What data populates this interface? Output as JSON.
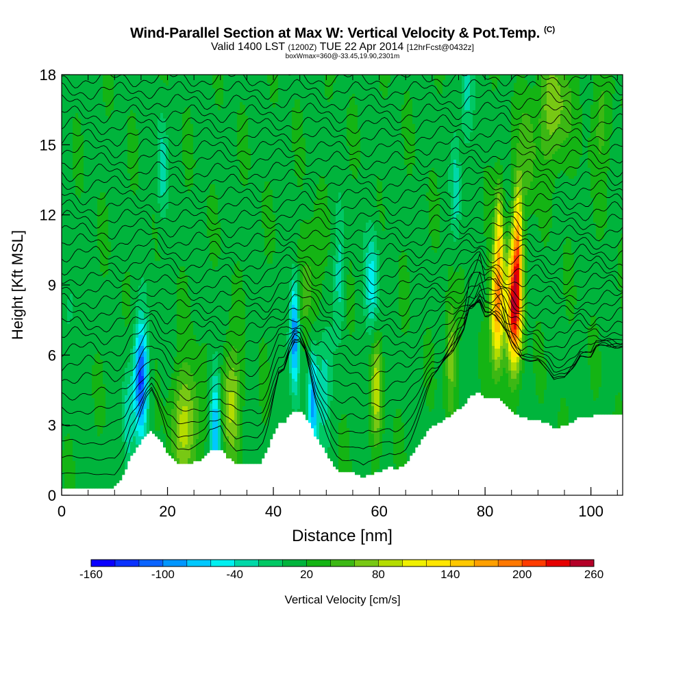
{
  "chart_data": {
    "type": "contour",
    "title": "Wind-Parallel Section at Max W: Vertical Velocity & Pot.Temp.",
    "title_mark": "(C)",
    "subtitle_main": "Valid 1400 LST",
    "subtitle_utc": "(1200Z)",
    "subtitle_date": "TUE 22 Apr 2014",
    "subtitle_fcst": "[12hrFcst@0432z]",
    "subtitle_box": "boxWmax=360@-33.45,19.90,2301m",
    "xlabel": "Distance [nm]",
    "ylabel": "Height [Kft MSL]",
    "xlim": [
      0,
      106
    ],
    "ylim": [
      0,
      18
    ],
    "xticks": [
      0,
      20,
      40,
      60,
      80,
      100
    ],
    "yticks": [
      0,
      3,
      6,
      9,
      12,
      15,
      18
    ],
    "colorbar": {
      "label": "Vertical Velocity [cm/s]",
      "tick_labels": [
        "-160",
        "-100",
        "-40",
        "20",
        "80",
        "140",
        "200",
        "260"
      ],
      "tick_values": [
        -160,
        -100,
        -40,
        20,
        80,
        140,
        200,
        260
      ],
      "min": -160,
      "max": 260,
      "bins": 21,
      "colors": [
        "#0a00ff",
        "#0a32ff",
        "#0a64ff",
        "#0096ff",
        "#00c8ff",
        "#00f0f0",
        "#00d8a8",
        "#00c864",
        "#00b43c",
        "#14b414",
        "#3cb814",
        "#78c814",
        "#b4dc00",
        "#f0f000",
        "#ffe600",
        "#ffc800",
        "#ffa000",
        "#ff7800",
        "#ff3c00",
        "#e60000",
        "#b40028"
      ]
    },
    "terrain_profile": [
      [
        0,
        0.35
      ],
      [
        10,
        0.35
      ],
      [
        11,
        0.65
      ],
      [
        12,
        1.05
      ],
      [
        13,
        1.65
      ],
      [
        14,
        1.95
      ],
      [
        15,
        2.3
      ],
      [
        16,
        2.6
      ],
      [
        17,
        2.75
      ],
      [
        18,
        2.55
      ],
      [
        19,
        2.2
      ],
      [
        20,
        1.75
      ],
      [
        21,
        1.6
      ],
      [
        22,
        1.35
      ],
      [
        24,
        1.3
      ],
      [
        26,
        1.5
      ],
      [
        27,
        1.6
      ],
      [
        28,
        1.9
      ],
      [
        29,
        1.95
      ],
      [
        30,
        2.0
      ],
      [
        31,
        1.7
      ],
      [
        32,
        1.5
      ],
      [
        33,
        1.3
      ],
      [
        37,
        1.3
      ],
      [
        38,
        1.5
      ],
      [
        39,
        2.0
      ],
      [
        40,
        2.6
      ],
      [
        41,
        3.05
      ],
      [
        42,
        3.1
      ],
      [
        43,
        3.4
      ],
      [
        44,
        3.6
      ],
      [
        45,
        3.6
      ],
      [
        46,
        3.4
      ],
      [
        47,
        3.0
      ],
      [
        48,
        2.5
      ],
      [
        49,
        2.2
      ],
      [
        50,
        1.8
      ],
      [
        51,
        1.45
      ],
      [
        52,
        1.1
      ],
      [
        53,
        0.95
      ],
      [
        55,
        1.0
      ],
      [
        56,
        0.9
      ],
      [
        57,
        0.75
      ],
      [
        58,
        0.9
      ],
      [
        59,
        0.95
      ],
      [
        61,
        1.1
      ],
      [
        62,
        1.2
      ],
      [
        63,
        1.15
      ],
      [
        64,
        1.2
      ],
      [
        65,
        1.35
      ],
      [
        66,
        1.65
      ],
      [
        67,
        2.0
      ],
      [
        68,
        2.35
      ],
      [
        69,
        2.7
      ],
      [
        70,
        2.95
      ],
      [
        71,
        3.05
      ],
      [
        72,
        3.2
      ],
      [
        73,
        3.35
      ],
      [
        74,
        3.5
      ],
      [
        75,
        3.7
      ],
      [
        76,
        3.85
      ],
      [
        77,
        4.2
      ],
      [
        78,
        4.3
      ],
      [
        79,
        4.45
      ],
      [
        80,
        4.2
      ],
      [
        82,
        4.2
      ],
      [
        83,
        4.1
      ],
      [
        84,
        3.85
      ],
      [
        85,
        3.6
      ],
      [
        86,
        3.45
      ],
      [
        87,
        3.3
      ],
      [
        90,
        3.25
      ],
      [
        91,
        3.15
      ],
      [
        92,
        3.05
      ],
      [
        93,
        2.9
      ],
      [
        95,
        2.95
      ],
      [
        97,
        3.2
      ],
      [
        98,
        3.35
      ],
      [
        100,
        3.35
      ],
      [
        101,
        3.5
      ],
      [
        106,
        3.5
      ]
    ],
    "updrafts": [
      {
        "x": 85.5,
        "y": 8.0,
        "w": 1.4,
        "peak": 225
      },
      {
        "x": 82.3,
        "y": 8.0,
        "w": 1.2,
        "peak": 160
      },
      {
        "x": 86.2,
        "y": 11.0,
        "w": 0.9,
        "peak": 130
      },
      {
        "x": 82.7,
        "y": 11.0,
        "w": 0.8,
        "peak": 95
      },
      {
        "x": 93.0,
        "y": 16.5,
        "w": 3.0,
        "peak": 60
      },
      {
        "x": 23.5,
        "y": 3.1,
        "w": 2.5,
        "peak": 75
      },
      {
        "x": 32.0,
        "y": 4.0,
        "w": 1.8,
        "peak": 70
      },
      {
        "x": 59.5,
        "y": 4.5,
        "w": 1.0,
        "peak": 75
      },
      {
        "x": 73.5,
        "y": 6.0,
        "w": 1.0,
        "peak": 60
      },
      {
        "x": 46.5,
        "y": 9.0,
        "w": 2.0,
        "peak": 40
      },
      {
        "x": 88.0,
        "y": 14.5,
        "w": 1.5,
        "peak": 40
      },
      {
        "x": 102.0,
        "y": 16.0,
        "w": 2.0,
        "peak": 30
      }
    ],
    "downdrafts": [
      {
        "x": 15.0,
        "y": 5.0,
        "w": 1.3,
        "peak": -140
      },
      {
        "x": 29.0,
        "y": 3.0,
        "w": 1.0,
        "peak": -100
      },
      {
        "x": 44.0,
        "y": 7.0,
        "w": 0.9,
        "peak": -125
      },
      {
        "x": 47.5,
        "y": 4.0,
        "w": 0.9,
        "peak": -100
      },
      {
        "x": 58.7,
        "y": 9.0,
        "w": 1.3,
        "peak": -65
      },
      {
        "x": 52.5,
        "y": 9.5,
        "w": 1.0,
        "peak": -45
      },
      {
        "x": 19.0,
        "y": 14.0,
        "w": 1.0,
        "peak": -50
      },
      {
        "x": 74.5,
        "y": 13.0,
        "w": 0.9,
        "peak": -45
      },
      {
        "x": 76.5,
        "y": 17.0,
        "w": 1.2,
        "peak": -45
      },
      {
        "x": 49.5,
        "y": 4.5,
        "w": 1.3,
        "peak": -55
      },
      {
        "x": 12.5,
        "y": 3.0,
        "w": 1.0,
        "peak": -50
      },
      {
        "x": 2.0,
        "y": 8.0,
        "w": 2.0,
        "peak": -25
      }
    ],
    "background_value": 15,
    "isentropes_kft": [
      0.8,
      1.5,
      2.2,
      2.9,
      3.6,
      4.3,
      5.0,
      5.6,
      6.2,
      6.8,
      7.3,
      7.8,
      8.3,
      8.8,
      9.3,
      9.8,
      10.3,
      10.8,
      11.3,
      11.8,
      12.3,
      12.8,
      13.3,
      13.8,
      14.3,
      14.8,
      15.3,
      15.8,
      16.3,
      16.8,
      17.3,
      17.8
    ]
  }
}
